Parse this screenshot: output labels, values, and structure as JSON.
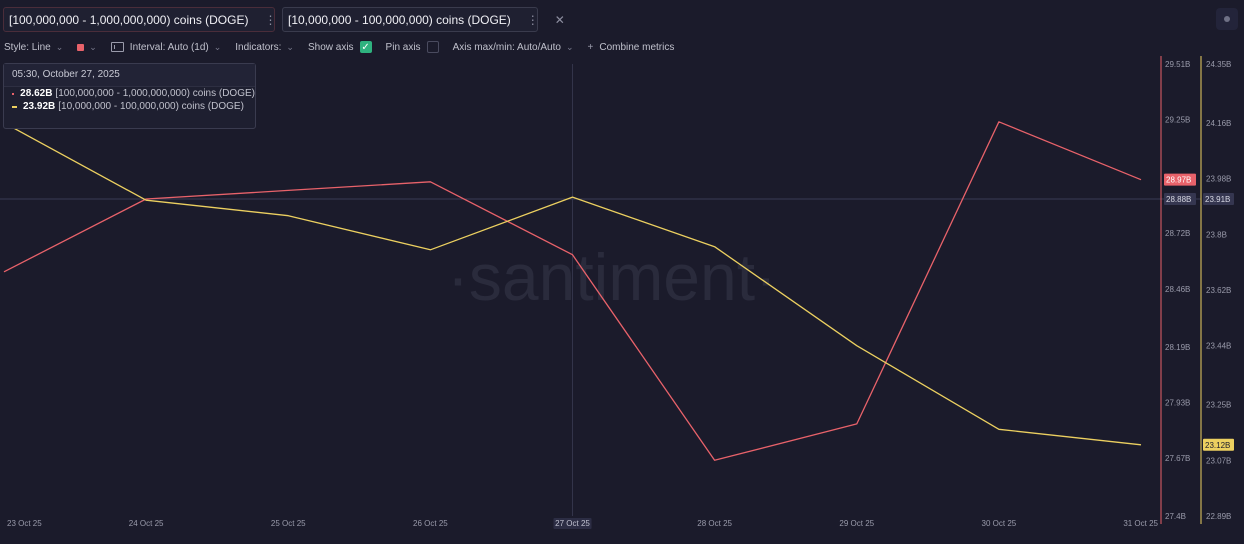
{
  "tabs": [
    {
      "label": "[100,000,000 - 1,000,000,000) coins (DOGE)",
      "color": "#e8626a"
    },
    {
      "label": "[10,000,000 - 100,000,000) coins (DOGE)",
      "color": "#ecd060"
    }
  ],
  "toolbar": {
    "style_label": "Style: Line",
    "interval_label": "Interval: Auto (1d)",
    "indicators_label": "Indicators:",
    "show_axis_label": "Show axis",
    "show_axis_checked": true,
    "pin_axis_label": "Pin axis",
    "pin_axis_checked": false,
    "axis_minmax_label": "Axis max/min: Auto/Auto",
    "combine_label": "Combine metrics"
  },
  "watermark": "·santiment·",
  "tooltip": {
    "title": "05:30, October 27, 2025",
    "rows": [
      {
        "value": "28.62B",
        "label": "[100,000,000 - 1,000,000,000) coins (DOGE)",
        "color": "#e8626a"
      },
      {
        "value": "23.92B",
        "label": "[10,000,000 - 100,000,000) coins (DOGE)",
        "color": "#ecd060"
      }
    ]
  },
  "chart_data": {
    "type": "line",
    "x": [
      "23 Oct 25",
      "24 Oct 25",
      "25 Oct 25",
      "26 Oct 25",
      "27 Oct 25",
      "28 Oct 25",
      "29 Oct 25",
      "30 Oct 25",
      "31 Oct 25"
    ],
    "hovered_x": "27 Oct 25",
    "series": [
      {
        "name": "[100,000,000 - 1,000,000,000) coins (DOGE)",
        "color": "#e8626a",
        "axis": "left",
        "values": [
          28.54,
          28.88,
          28.92,
          28.96,
          28.62,
          27.66,
          27.83,
          29.24,
          28.97
        ],
        "last_value_label": "28.97B"
      },
      {
        "name": "[10,000,000 - 100,000,000) coins (DOGE)",
        "color": "#ecd060",
        "axis": "right",
        "values": [
          24.16,
          23.91,
          23.86,
          23.75,
          23.92,
          23.76,
          23.44,
          23.17,
          23.12
        ],
        "last_value_label": "23.12B"
      }
    ],
    "axis_left": {
      "min": 27.4,
      "max": 29.51,
      "ticks": [
        29.51,
        29.25,
        28.72,
        28.46,
        28.19,
        27.93,
        27.67,
        27.4
      ],
      "tick_labels": [
        "29.51B",
        "29.25B",
        "28.72B",
        "28.46B",
        "28.19B",
        "27.93B",
        "27.67B",
        "27.4B"
      ],
      "crosshair_value": 28.88,
      "crosshair_label": "28.88B"
    },
    "axis_right": {
      "min": 22.89,
      "max": 24.35,
      "ticks": [
        24.35,
        24.16,
        23.98,
        23.8,
        23.62,
        23.44,
        23.25,
        23.07,
        22.89
      ],
      "tick_labels": [
        "24.35B",
        "24.16B",
        "23.98B",
        "23.8B",
        "23.62B",
        "23.44B",
        "23.25B",
        "23.07B",
        "22.89B"
      ],
      "crosshair_label": "23.91B"
    },
    "grid": false,
    "legend": "top"
  }
}
